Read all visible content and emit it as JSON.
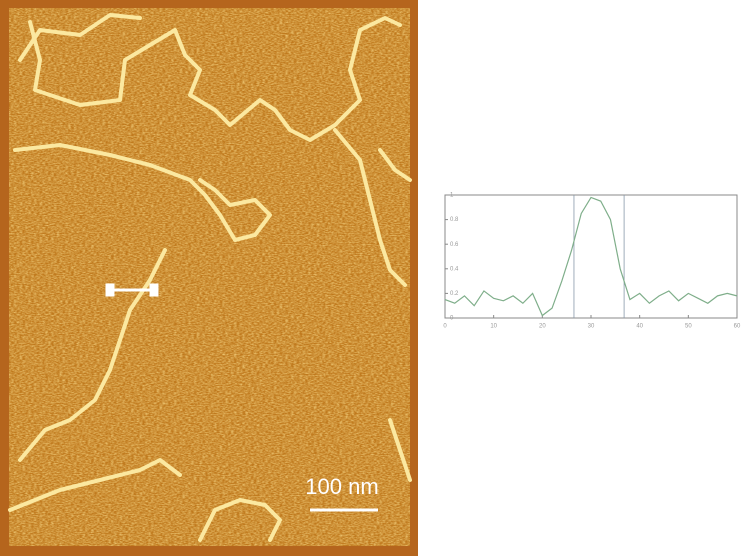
{
  "image": {
    "scale_bar_label": "100 nm"
  },
  "chart_data": {
    "type": "line",
    "x": [
      0,
      2,
      4,
      6,
      8,
      10,
      12,
      14,
      16,
      18,
      20,
      22,
      24,
      26,
      28,
      30,
      32,
      34,
      36,
      38,
      40,
      42,
      44,
      46,
      48,
      50,
      52,
      54,
      56,
      58,
      60
    ],
    "series": [
      {
        "color": "#7fae8a",
        "values": [
          0.15,
          0.12,
          0.18,
          0.1,
          0.22,
          0.16,
          0.14,
          0.18,
          0.12,
          0.2,
          0.02,
          0.08,
          0.3,
          0.55,
          0.85,
          0.98,
          0.95,
          0.8,
          0.4,
          0.15,
          0.2,
          0.12,
          0.18,
          0.22,
          0.14,
          0.2,
          0.16,
          0.12,
          0.18,
          0.2,
          0.18
        ]
      }
    ],
    "xlim": [
      0,
      60
    ],
    "xticks": [
      0,
      10,
      20,
      30,
      40,
      50,
      60
    ],
    "ylim": [
      0,
      1
    ],
    "yticks": [
      0,
      0.2,
      0.4,
      0.6,
      0.8,
      1
    ],
    "vlines": [
      26.5,
      36.8
    ]
  }
}
